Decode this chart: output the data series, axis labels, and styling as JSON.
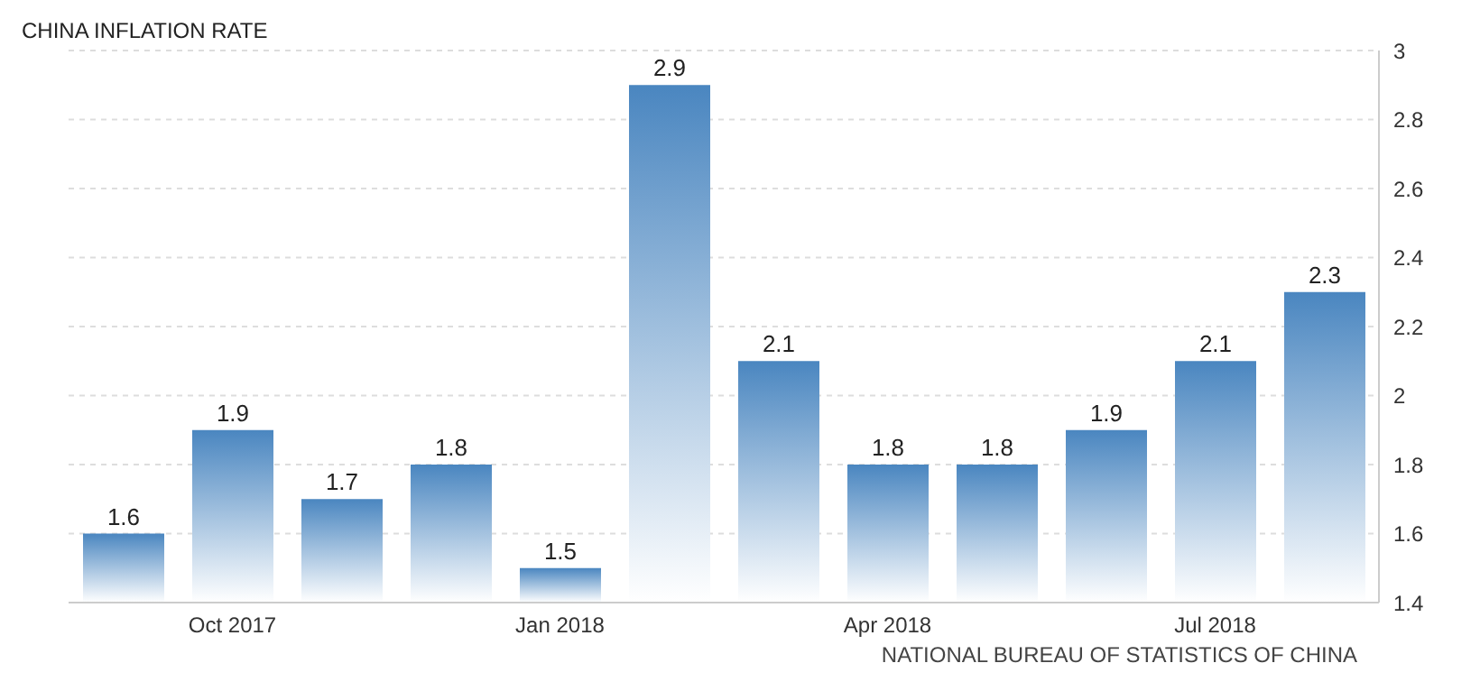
{
  "chart_data": {
    "type": "bar",
    "title": "CHINA INFLATION RATE",
    "categories": [
      null,
      "Oct 2017",
      null,
      null,
      "Jan 2018",
      null,
      null,
      "Apr 2018",
      null,
      null,
      "Jul 2018",
      null
    ],
    "values": [
      1.6,
      1.9,
      1.7,
      1.8,
      1.5,
      2.9,
      2.1,
      1.8,
      1.8,
      1.9,
      2.1,
      2.3
    ],
    "color": "#4a86c0",
    "ylim": [
      1.4,
      3
    ],
    "yticks": [
      1.4,
      1.6,
      1.8,
      2,
      2.2,
      2.4,
      2.6,
      2.8,
      3
    ],
    "grid": "y",
    "data_labels": true,
    "annotations": [
      "NATIONAL BUREAU OF STATISTICS OF CHINA"
    ]
  }
}
